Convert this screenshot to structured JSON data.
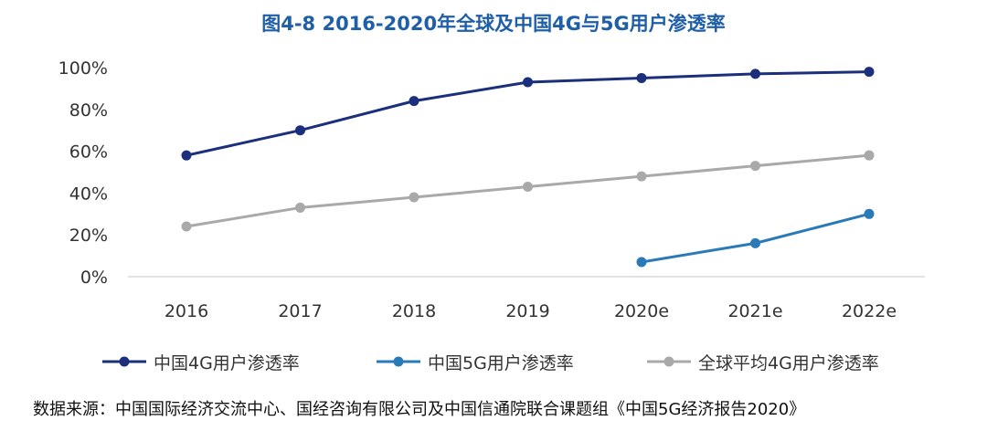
{
  "chart_data": {
    "type": "line",
    "title": "图4-8 2016-2020年全球及中国4G与5G用户渗透率",
    "categories": [
      "2016",
      "2017",
      "2018",
      "2019",
      "2020e",
      "2021e",
      "2022e"
    ],
    "ylim": [
      0,
      100
    ],
    "yticks": [
      "0%",
      "20%",
      "40%",
      "60%",
      "80%",
      "100%"
    ],
    "series": [
      {
        "name": "中国4G用户渗透率",
        "color": "#1b2f7d",
        "values": [
          58,
          70,
          84,
          93,
          95,
          97,
          98
        ]
      },
      {
        "name": "中国5G用户渗透率",
        "color": "#2a7ab8",
        "values": [
          null,
          null,
          null,
          null,
          7,
          16,
          30
        ]
      },
      {
        "name": "全球平均4G用户渗透率",
        "color": "#a9a9a9",
        "values": [
          24,
          33,
          38,
          43,
          48,
          53,
          58
        ]
      }
    ]
  },
  "source": "数据来源：中国国际经济交流中心、国经咨询有限公司及中国信通院联合课题组《中国5G经济报告2020》"
}
